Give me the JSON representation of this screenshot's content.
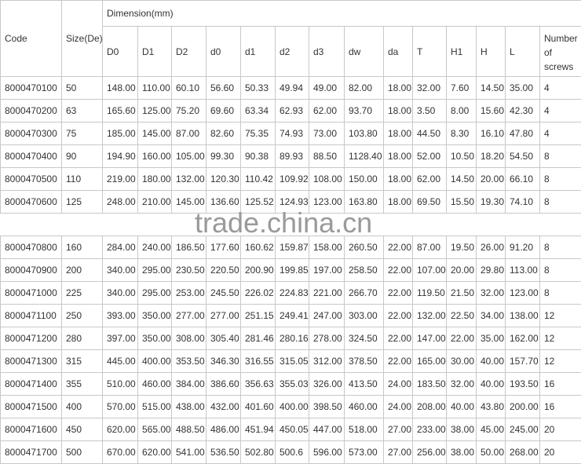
{
  "headers": {
    "code": "Code",
    "size": "Size(De)",
    "dimension": "Dimension(mm)",
    "columns": [
      "D0",
      "D1",
      "D2",
      "d0",
      "d1",
      "d2",
      "d3",
      "dw",
      "da",
      "T",
      "H1",
      "H",
      "L",
      "Number of screws"
    ]
  },
  "rows": [
    [
      "8000470100",
      "50",
      "148.00",
      "110.00",
      "60.10",
      "56.60",
      "50.33",
      "49.94",
      "49.00",
      "82.00",
      "18.00",
      "32.00",
      "7.60",
      "14.50",
      "35.00",
      "4"
    ],
    [
      "8000470200",
      "63",
      "165.60",
      "125.00",
      "75.20",
      "69.60",
      "63.34",
      "62.93",
      "62.00",
      "93.70",
      "18.00",
      "3.50",
      "8.00",
      "15.60",
      "42.30",
      "4"
    ],
    [
      "8000470300",
      "75",
      "185.00",
      "145.00",
      "87.00",
      "82.60",
      "75.35",
      "74.93",
      "73.00",
      "103.80",
      "18.00",
      "44.50",
      "8.30",
      "16.10",
      "47.80",
      "4"
    ],
    [
      "8000470400",
      "90",
      "194.90",
      "160.00",
      "105.00",
      "99.30",
      "90.38",
      "89.93",
      "88.50",
      "1128.40",
      "18.00",
      "52.00",
      "10.50",
      "18.20",
      "54.50",
      "8"
    ],
    [
      "8000470500",
      "110",
      "219.00",
      "180.00",
      "132.00",
      "120.30",
      "110.42",
      "109.92",
      "108.00",
      "150.00",
      "18.00",
      "62.00",
      "14.50",
      "20.00",
      "66.10",
      "8"
    ],
    [
      "8000470600",
      "125",
      "248.00",
      "210.00",
      "145.00",
      "136.60",
      "125.52",
      "124.93",
      "123.00",
      "163.80",
      "18.00",
      "69.50",
      "15.50",
      "19.30",
      "74.10",
      "8"
    ],
    [
      "8000470800",
      "160",
      "284.00",
      "240.00",
      "186.50",
      "177.60",
      "160.62",
      "159.87",
      "158.00",
      "260.50",
      "22.00",
      "87.00",
      "19.50",
      "26.00",
      "91.20",
      "8"
    ],
    [
      "8000470900",
      "200",
      "340.00",
      "295.00",
      "230.50",
      "220.50",
      "200.90",
      "199.85",
      "197.00",
      "258.50",
      "22.00",
      "107.00",
      "20.00",
      "29.80",
      "113.00",
      "8"
    ],
    [
      "8000471000",
      "225",
      "340.00",
      "295.00",
      "253.00",
      "245.50",
      "226.02",
      "224.83",
      "221.00",
      "266.70",
      "22.00",
      "119.50",
      "21.50",
      "32.00",
      "123.00",
      "8"
    ],
    [
      "8000471100",
      "250",
      "393.00",
      "350.00",
      "277.00",
      "277.00",
      "251.15",
      "249.41",
      "247.00",
      "303.00",
      "22.00",
      "132.00",
      "22.50",
      "34.00",
      "138.00",
      "12"
    ],
    [
      "8000471200",
      "280",
      "397.00",
      "350.00",
      "308.00",
      "305.40",
      "281.46",
      "280.16",
      "278.00",
      "324.50",
      "22.00",
      "147.00",
      "22.00",
      "35.00",
      "162.00",
      "12"
    ],
    [
      "8000471300",
      "315",
      "445.00",
      "400.00",
      "353.50",
      "346.30",
      "316.55",
      "315.05",
      "312.00",
      "378.50",
      "22.00",
      "165.00",
      "30.00",
      "40.00",
      "157.70",
      "12"
    ],
    [
      "8000471400",
      "355",
      "510.00",
      "460.00",
      "384.00",
      "386.60",
      "356.63",
      "355.03",
      "326.00",
      "413.50",
      "24.00",
      "183.50",
      "32.00",
      "40.00",
      "193.50",
      "16"
    ],
    [
      "8000471500",
      "400",
      "570.00",
      "515.00",
      "438.00",
      "432.00",
      "401.60",
      "400.00",
      "398.50",
      "460.00",
      "24.00",
      "208.00",
      "40.00",
      "43.80",
      "200.00",
      "16"
    ],
    [
      "8000471600",
      "450",
      "620.00",
      "565.00",
      "488.50",
      "486.00",
      "451.94",
      "450.05",
      "447.00",
      "518.00",
      "27.00",
      "233.00",
      "38.00",
      "45.00",
      "245.00",
      "20"
    ],
    [
      "8000471700",
      "500",
      "670.00",
      "620.00",
      "541.00",
      "536.50",
      "502.80",
      "500.6",
      "596.00",
      "573.00",
      "27.00",
      "256.00",
      "38.00",
      "50.00",
      "268.00",
      "20"
    ]
  ],
  "watermark": "trade.china.cn"
}
